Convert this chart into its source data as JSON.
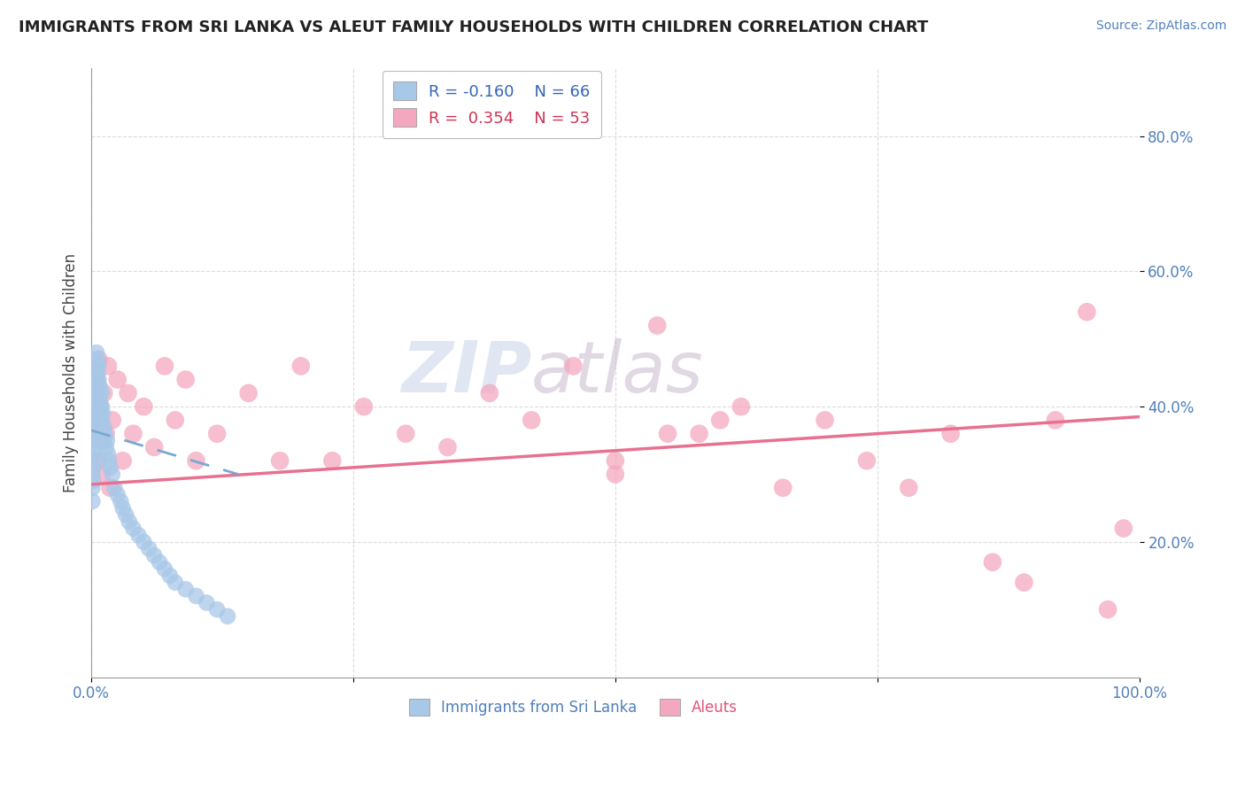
{
  "title": "IMMIGRANTS FROM SRI LANKA VS ALEUT FAMILY HOUSEHOLDS WITH CHILDREN CORRELATION CHART",
  "source": "Source: ZipAtlas.com",
  "ylabel": "Family Households with Children",
  "legend_label1": "Immigrants from Sri Lanka",
  "legend_label2": "Aleuts",
  "R1": -0.16,
  "N1": 66,
  "R2": 0.354,
  "N2": 53,
  "watermark_zip": "ZIP",
  "watermark_atlas": "atlas",
  "xlim": [
    0.0,
    1.0
  ],
  "ylim": [
    0.0,
    0.9
  ],
  "ytick_positions": [
    0.2,
    0.4,
    0.6,
    0.8
  ],
  "ytick_labels": [
    "20.0%",
    "40.0%",
    "60.0%",
    "80.0%"
  ],
  "xtick_positions": [
    0.0,
    0.25,
    0.5,
    0.75,
    1.0
  ],
  "xtick_labels": [
    "0.0%",
    "",
    "",
    "",
    "100.0%"
  ],
  "color_blue": "#a8c8e8",
  "color_pink": "#f4a8c0",
  "line_blue_color": "#7aa8d0",
  "line_pink_color": "#e87090",
  "background_color": "#ffffff",
  "grid_color": "#cccccc",
  "blue_x": [
    0.001,
    0.001,
    0.001,
    0.002,
    0.002,
    0.002,
    0.002,
    0.003,
    0.003,
    0.003,
    0.003,
    0.003,
    0.004,
    0.004,
    0.004,
    0.004,
    0.005,
    0.005,
    0.005,
    0.005,
    0.005,
    0.006,
    0.006,
    0.006,
    0.006,
    0.007,
    0.007,
    0.007,
    0.008,
    0.008,
    0.008,
    0.009,
    0.009,
    0.01,
    0.01,
    0.01,
    0.011,
    0.012,
    0.012,
    0.013,
    0.014,
    0.015,
    0.016,
    0.017,
    0.018,
    0.02,
    0.022,
    0.025,
    0.028,
    0.03,
    0.033,
    0.036,
    0.04,
    0.045,
    0.05,
    0.055,
    0.06,
    0.065,
    0.07,
    0.075,
    0.08,
    0.09,
    0.1,
    0.11,
    0.12,
    0.13
  ],
  "blue_y": [
    0.3,
    0.28,
    0.26,
    0.35,
    0.33,
    0.31,
    0.29,
    0.4,
    0.38,
    0.36,
    0.34,
    0.32,
    0.45,
    0.43,
    0.41,
    0.39,
    0.48,
    0.46,
    0.44,
    0.42,
    0.37,
    0.47,
    0.45,
    0.43,
    0.38,
    0.46,
    0.44,
    0.42,
    0.43,
    0.41,
    0.39,
    0.4,
    0.38,
    0.42,
    0.4,
    0.38,
    0.39,
    0.37,
    0.35,
    0.36,
    0.34,
    0.35,
    0.33,
    0.32,
    0.31,
    0.3,
    0.28,
    0.27,
    0.26,
    0.25,
    0.24,
    0.23,
    0.22,
    0.21,
    0.2,
    0.19,
    0.18,
    0.17,
    0.16,
    0.15,
    0.14,
    0.13,
    0.12,
    0.11,
    0.1,
    0.09
  ],
  "pink_x": [
    0.002,
    0.003,
    0.004,
    0.005,
    0.006,
    0.007,
    0.008,
    0.009,
    0.01,
    0.012,
    0.014,
    0.016,
    0.018,
    0.02,
    0.025,
    0.03,
    0.035,
    0.04,
    0.05,
    0.06,
    0.07,
    0.08,
    0.09,
    0.1,
    0.12,
    0.15,
    0.18,
    0.2,
    0.23,
    0.26,
    0.3,
    0.34,
    0.38,
    0.42,
    0.46,
    0.5,
    0.54,
    0.58,
    0.62,
    0.66,
    0.7,
    0.74,
    0.78,
    0.82,
    0.86,
    0.89,
    0.92,
    0.95,
    0.97,
    0.985,
    0.5,
    0.55,
    0.6
  ],
  "pink_y": [
    0.38,
    0.42,
    0.36,
    0.44,
    0.32,
    0.47,
    0.4,
    0.35,
    0.3,
    0.42,
    0.36,
    0.46,
    0.28,
    0.38,
    0.44,
    0.32,
    0.42,
    0.36,
    0.4,
    0.34,
    0.46,
    0.38,
    0.44,
    0.32,
    0.36,
    0.42,
    0.32,
    0.46,
    0.32,
    0.4,
    0.36,
    0.34,
    0.42,
    0.38,
    0.46,
    0.3,
    0.52,
    0.36,
    0.4,
    0.28,
    0.38,
    0.32,
    0.28,
    0.36,
    0.17,
    0.14,
    0.38,
    0.54,
    0.1,
    0.22,
    0.32,
    0.36,
    0.38
  ],
  "pink_line_x0": 0.0,
  "pink_line_y0": 0.285,
  "pink_line_x1": 1.0,
  "pink_line_y1": 0.385,
  "blue_line_x0": 0.0,
  "blue_line_y0": 0.365,
  "blue_line_x1": 0.14,
  "blue_line_y1": 0.3
}
